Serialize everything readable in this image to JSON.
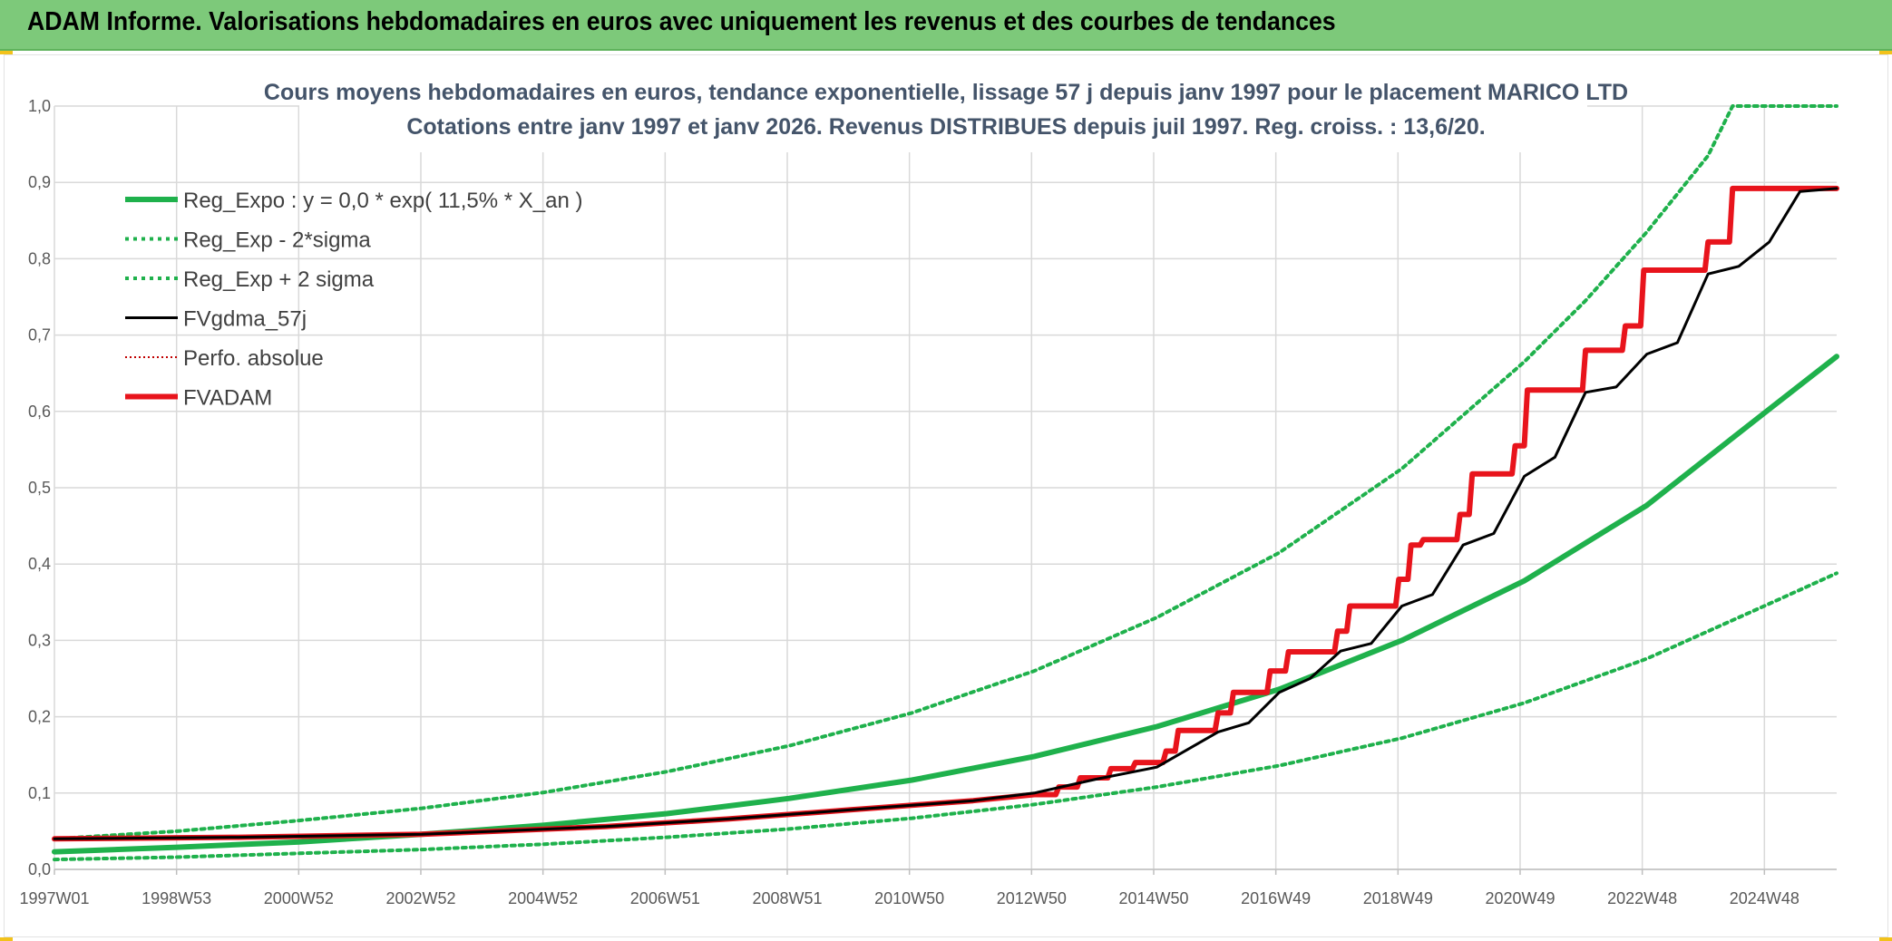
{
  "header": {
    "title": "ADAM Informe. Valorisations hebdomadaires en euros avec uniquement les revenus et des courbes de tendances"
  },
  "colors": {
    "header_bg": "#7dc97a",
    "corner": "#f2c21b",
    "green": "#1fb14c",
    "black": "#000000",
    "red": "#e8141c"
  },
  "chart_data": {
    "type": "line",
    "title_lines": [
      "Cours moyens hebdomadaires en euros, tendance exponentielle, lissage 57 j depuis janv 1997 pour le placement MARICO LTD",
      "Cotations entre janv 1997 et janv 2026. Revenus DISTRIBUES depuis juil 1997. Reg. croiss. : 13,6/20."
    ],
    "xlabel": "",
    "ylabel": "",
    "x_tick_labels": [
      "1997W01",
      "1998W53",
      "2000W52",
      "2002W52",
      "2004W52",
      "2006W51",
      "2008W51",
      "2010W50",
      "2012W50",
      "2014W50",
      "2016W49",
      "2018W49",
      "2020W49",
      "2022W48",
      "2024W48"
    ],
    "y_tick_labels": [
      "0,0",
      "0,1",
      "0,2",
      "0,3",
      "0,4",
      "0,5",
      "0,6",
      "0,7",
      "0,8",
      "0,9",
      "1,0"
    ],
    "xlim": [
      1997.0,
      2026.1
    ],
    "ylim": [
      0,
      1.0
    ],
    "grid": true,
    "legend_position": "top-left",
    "series": [
      {
        "name": "Reg_Expo : y = 0,0 * exp( 11,5% *  X_an )",
        "style": "solid-thick",
        "color": "#1fb14c",
        "points": [
          [
            1997,
            0.023
          ],
          [
            1999,
            0.029
          ],
          [
            2001,
            0.036
          ],
          [
            2003,
            0.046
          ],
          [
            2005,
            0.058
          ],
          [
            2007,
            0.073
          ],
          [
            2009,
            0.093
          ],
          [
            2011,
            0.117
          ],
          [
            2013,
            0.148
          ],
          [
            2015,
            0.187
          ],
          [
            2017,
            0.236
          ],
          [
            2019,
            0.3
          ],
          [
            2021,
            0.378
          ],
          [
            2023,
            0.477
          ],
          [
            2025,
            0.603
          ],
          [
            2026.1,
            0.672
          ]
        ]
      },
      {
        "name": "Reg_Exp - 2*sigma",
        "style": "dotted",
        "color": "#1fb14c",
        "points": [
          [
            1997,
            0.013
          ],
          [
            1999,
            0.016
          ],
          [
            2001,
            0.021
          ],
          [
            2003,
            0.026
          ],
          [
            2005,
            0.033
          ],
          [
            2007,
            0.042
          ],
          [
            2009,
            0.053
          ],
          [
            2011,
            0.067
          ],
          [
            2013,
            0.085
          ],
          [
            2015,
            0.108
          ],
          [
            2017,
            0.136
          ],
          [
            2019,
            0.172
          ],
          [
            2021,
            0.218
          ],
          [
            2023,
            0.276
          ],
          [
            2025,
            0.348
          ],
          [
            2026.1,
            0.388
          ]
        ]
      },
      {
        "name": "Reg_Exp + 2 sigma",
        "style": "dotted",
        "color": "#1fb14c",
        "points": [
          [
            1997,
            0.04
          ],
          [
            1999,
            0.05
          ],
          [
            2001,
            0.064
          ],
          [
            2003,
            0.08
          ],
          [
            2005,
            0.101
          ],
          [
            2007,
            0.128
          ],
          [
            2009,
            0.162
          ],
          [
            2011,
            0.205
          ],
          [
            2013,
            0.26
          ],
          [
            2015,
            0.33
          ],
          [
            2017,
            0.415
          ],
          [
            2019,
            0.525
          ],
          [
            2021,
            0.665
          ],
          [
            2022,
            0.745
          ],
          [
            2023,
            0.835
          ],
          [
            2024,
            0.935
          ],
          [
            2024.4,
            1.0
          ],
          [
            2026.1,
            1.0
          ]
        ]
      },
      {
        "name": "FVgdma_57j",
        "style": "solid",
        "color": "#000000",
        "points": [
          [
            1997,
            0.04
          ],
          [
            2000,
            0.042
          ],
          [
            2003,
            0.046
          ],
          [
            2006,
            0.056
          ],
          [
            2008,
            0.066
          ],
          [
            2010,
            0.078
          ],
          [
            2012,
            0.09
          ],
          [
            2013,
            0.1
          ],
          [
            2014,
            0.118
          ],
          [
            2015,
            0.134
          ],
          [
            2016,
            0.18
          ],
          [
            2016.5,
            0.192
          ],
          [
            2017,
            0.232
          ],
          [
            2017.5,
            0.25
          ],
          [
            2018,
            0.286
          ],
          [
            2018.5,
            0.296
          ],
          [
            2019,
            0.345
          ],
          [
            2019.5,
            0.36
          ],
          [
            2020,
            0.425
          ],
          [
            2020.5,
            0.44
          ],
          [
            2021,
            0.515
          ],
          [
            2021.5,
            0.54
          ],
          [
            2022,
            0.625
          ],
          [
            2022.5,
            0.632
          ],
          [
            2023,
            0.675
          ],
          [
            2023.5,
            0.69
          ],
          [
            2024,
            0.78
          ],
          [
            2024.5,
            0.79
          ],
          [
            2025,
            0.822
          ],
          [
            2025.5,
            0.888
          ],
          [
            2026.1,
            0.892
          ]
        ]
      },
      {
        "name": "Perfo. absolue",
        "style": "dotted-thin",
        "color": "#c00000",
        "points": []
      },
      {
        "name": "FVADAM",
        "style": "solid-thick",
        "color": "#e8141c",
        "points": [
          [
            1997,
            0.04
          ],
          [
            2000,
            0.042
          ],
          [
            2003,
            0.046
          ],
          [
            2006,
            0.056
          ],
          [
            2008,
            0.066
          ],
          [
            2010,
            0.078
          ],
          [
            2012,
            0.09
          ],
          [
            2013,
            0.098
          ],
          [
            2013.35,
            0.098
          ],
          [
            2013.4,
            0.108
          ],
          [
            2013.7,
            0.108
          ],
          [
            2013.75,
            0.12
          ],
          [
            2014.2,
            0.12
          ],
          [
            2014.25,
            0.132
          ],
          [
            2014.6,
            0.132
          ],
          [
            2014.65,
            0.14
          ],
          [
            2015.1,
            0.14
          ],
          [
            2015.15,
            0.155
          ],
          [
            2015.3,
            0.155
          ],
          [
            2015.35,
            0.182
          ],
          [
            2015.95,
            0.182
          ],
          [
            2016,
            0.205
          ],
          [
            2016.2,
            0.205
          ],
          [
            2016.25,
            0.232
          ],
          [
            2016.8,
            0.232
          ],
          [
            2016.85,
            0.26
          ],
          [
            2017.1,
            0.26
          ],
          [
            2017.15,
            0.285
          ],
          [
            2017.9,
            0.285
          ],
          [
            2017.95,
            0.312
          ],
          [
            2018.1,
            0.312
          ],
          [
            2018.15,
            0.345
          ],
          [
            2018.9,
            0.345
          ],
          [
            2018.95,
            0.38
          ],
          [
            2019.1,
            0.38
          ],
          [
            2019.15,
            0.425
          ],
          [
            2019.3,
            0.425
          ],
          [
            2019.35,
            0.432
          ],
          [
            2019.9,
            0.432
          ],
          [
            2019.95,
            0.465
          ],
          [
            2020.1,
            0.465
          ],
          [
            2020.15,
            0.518
          ],
          [
            2020.8,
            0.518
          ],
          [
            2020.85,
            0.555
          ],
          [
            2021,
            0.555
          ],
          [
            2021.05,
            0.628
          ],
          [
            2021.95,
            0.628
          ],
          [
            2022,
            0.68
          ],
          [
            2022.6,
            0.68
          ],
          [
            2022.65,
            0.712
          ],
          [
            2022.9,
            0.712
          ],
          [
            2022.95,
            0.785
          ],
          [
            2023.95,
            0.785
          ],
          [
            2024,
            0.822
          ],
          [
            2024.35,
            0.822
          ],
          [
            2024.4,
            0.892
          ],
          [
            2026.1,
            0.892
          ]
        ]
      }
    ]
  }
}
